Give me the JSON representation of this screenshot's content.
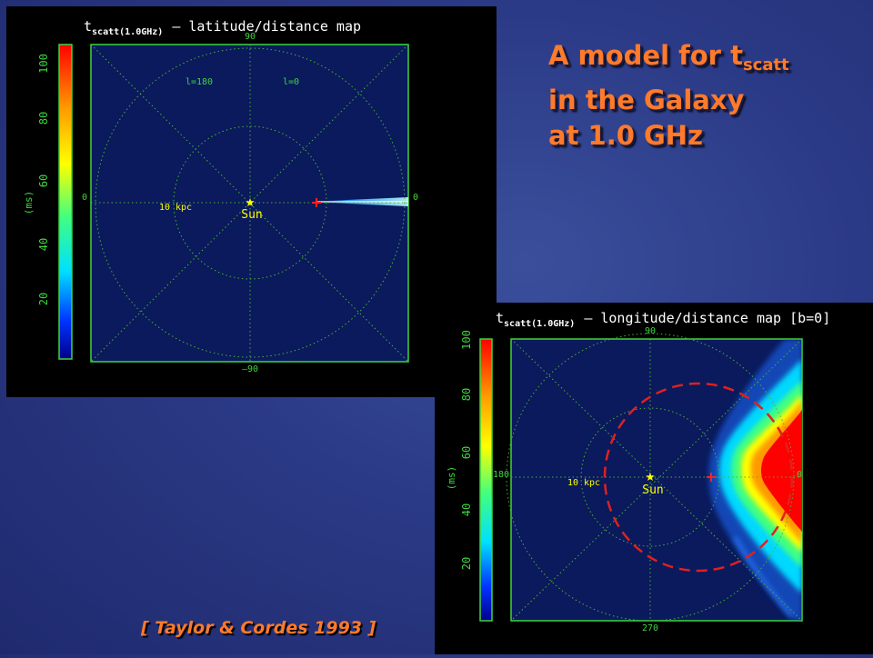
{
  "slide": {
    "title_line1_main": "A model for t",
    "title_line1_sub": "scatt",
    "title_line2": "in the Galaxy",
    "title_line3": "at 1.0 GHz",
    "citation": "[ Taylor & Cordes 1993 ]",
    "title_color": "#ff7a2a"
  },
  "map1": {
    "title_t": "t",
    "title_sub": "scatt(1.0GHz)",
    "title_rest": "– latitude/distance map",
    "top_label": "90",
    "bottom_label": "–90",
    "left_label": "0",
    "right_label": "0",
    "l180": "l=180",
    "l0": "l=0",
    "ring_label": "10 kpc",
    "sun_label": "Sun",
    "colorbar_unit": "(ms)",
    "colorbar_ticks": [
      "100",
      "80",
      "60",
      "40",
      "20"
    ]
  },
  "map2": {
    "title_t": "t",
    "title_sub": "scatt(1.0GHz)",
    "title_rest": "– longitude/distance map [b=0]",
    "top_label": "90",
    "bottom_label": "270",
    "left_label": "180",
    "right_label": "0",
    "ring_label": "10 kpc",
    "sun_label": "Sun",
    "colorbar_unit": "(ms)",
    "colorbar_ticks": [
      "100",
      "80",
      "60",
      "40",
      "20"
    ]
  },
  "colors": {
    "map_background": "#0a1a5c",
    "grid": "#4caf3c",
    "frame": "#3dd63d",
    "sun": "#ffff00",
    "galactic_center_marker": "#ff2020",
    "dashed_circle": "#e02020"
  }
}
